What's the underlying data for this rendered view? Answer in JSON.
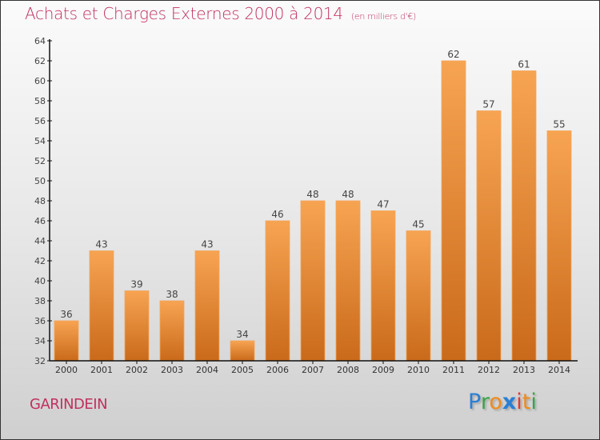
{
  "header": {
    "title": "Achats et Charges Externes 2000 à 2014",
    "subtitle": "(en milliers d'€)"
  },
  "footer": {
    "commune": "GARINDEIN",
    "logo": {
      "letters": [
        "P",
        "r",
        "o",
        "x",
        "i",
        "t",
        "i"
      ],
      "colors": [
        "#2a7fd4",
        "#3aa34a",
        "#f08a1c",
        "#2a7fd4",
        "#e03a2a",
        "#f08a1c",
        "#3aa34a"
      ]
    }
  },
  "colors": {
    "title": "#c0315e",
    "bar_top": "#f7a452",
    "bar_bottom": "#c96a1a",
    "axis": "#111111",
    "label": "#444444"
  },
  "chart_data": {
    "type": "bar",
    "title": "Achats et Charges Externes 2000 à 2014",
    "subtitle": "(en milliers d'€)",
    "xlabel": "",
    "ylabel": "",
    "categories": [
      "2000",
      "2001",
      "2002",
      "2003",
      "2004",
      "2005",
      "2006",
      "2007",
      "2008",
      "2009",
      "2010",
      "2011",
      "2012",
      "2013",
      "2014"
    ],
    "values": [
      36,
      43,
      39,
      38,
      43,
      34,
      46,
      48,
      48,
      47,
      45,
      62,
      57,
      61,
      55
    ],
    "ylim": [
      32,
      64
    ],
    "yticks": [
      32,
      34,
      36,
      38,
      40,
      42,
      44,
      46,
      48,
      50,
      52,
      54,
      56,
      58,
      60,
      62,
      64
    ],
    "grid": false,
    "legend": "none",
    "data_labels": true
  }
}
